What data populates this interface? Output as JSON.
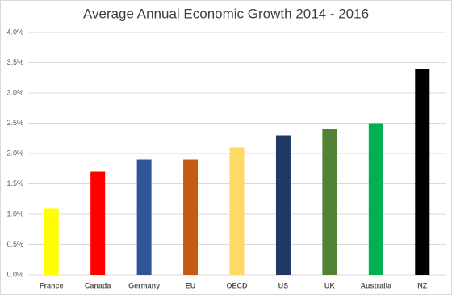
{
  "chart_data": {
    "type": "bar",
    "title": "Average Annual Economic Growth 2014 - 2016",
    "categories": [
      "France",
      "Canada",
      "Germany",
      "EU",
      "OECD",
      "US",
      "UK",
      "Australia",
      "NZ"
    ],
    "values": [
      1.1,
      1.7,
      1.9,
      1.9,
      2.1,
      2.3,
      2.4,
      2.5,
      3.4
    ],
    "colors": [
      "#ffff00",
      "#ff0000",
      "#2f5597",
      "#c55a11",
      "#ffd966",
      "#203864",
      "#548235",
      "#00b050",
      "#000000"
    ],
    "ylim": [
      0,
      4
    ],
    "yticks": [
      {
        "value": 0,
        "label": "0.0%"
      },
      {
        "value": 0.5,
        "label": "0.5%"
      },
      {
        "value": 1,
        "label": "1.0%"
      },
      {
        "value": 1.5,
        "label": "1.5%"
      },
      {
        "value": 2,
        "label": "2.0%"
      },
      {
        "value": 2.5,
        "label": "2.5%"
      },
      {
        "value": 3,
        "label": "3.0%"
      },
      {
        "value": 3.5,
        "label": "3.5%"
      },
      {
        "value": 4,
        "label": "4.0%"
      }
    ],
    "grid": true
  }
}
